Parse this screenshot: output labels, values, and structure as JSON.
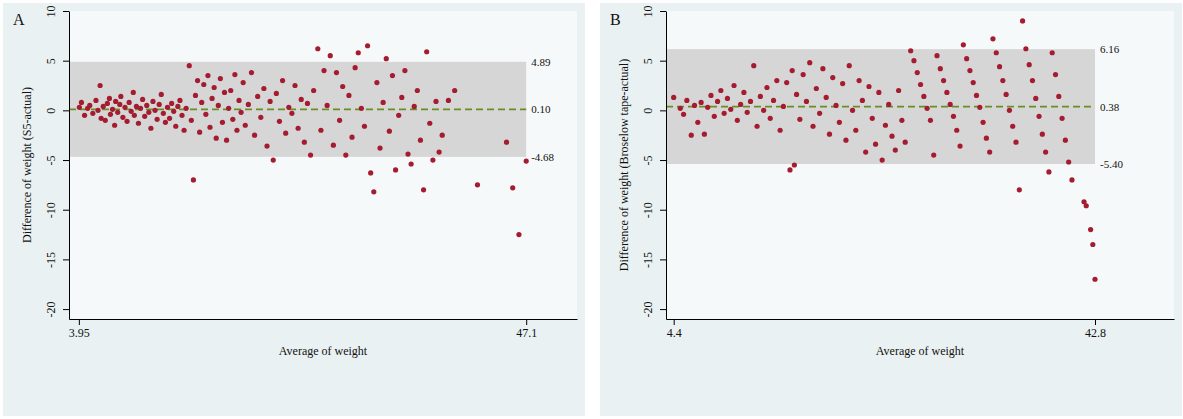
{
  "chart_data": [
    {
      "type": "scatter",
      "title": "A",
      "x_label": "Average of weight",
      "y_label": "Difference of weight (S5-actual)",
      "color": "#a51c30",
      "marker": "circle",
      "xlim": [
        3.0,
        52.0
      ],
      "ylim": [
        -21,
        10
      ],
      "xticks": [
        3.95,
        47.1
      ],
      "yticks": [
        -20,
        -15,
        -10,
        -5,
        0,
        5,
        10
      ],
      "mean_difference": {
        "value": 0.1,
        "label": "0.10"
      },
      "limits_of_agreement": [
        {
          "value": 4.89,
          "label": "4.89"
        },
        {
          "value": -4.68,
          "label": "-4.68"
        }
      ],
      "x": [
        4.0,
        4.2,
        4.5,
        4.8,
        5.0,
        5.3,
        5.6,
        5.8,
        6.0,
        6.1,
        6.3,
        6.5,
        6.7,
        6.9,
        7.0,
        7.2,
        7.4,
        7.5,
        7.7,
        7.9,
        8.0,
        8.2,
        8.4,
        8.6,
        8.8,
        9.0,
        9.2,
        9.3,
        9.5,
        9.7,
        9.9,
        10.1,
        10.3,
        10.5,
        10.7,
        10.9,
        11.1,
        11.3,
        11.5,
        11.7,
        11.9,
        12.1,
        12.3,
        12.5,
        12.7,
        12.9,
        13.1,
        13.3,
        13.5,
        13.7,
        13.9,
        14.1,
        14.3,
        14.6,
        14.8,
        15.0,
        15.2,
        15.4,
        15.6,
        15.8,
        16.0,
        16.2,
        16.4,
        16.6,
        16.8,
        17.0,
        17.2,
        17.4,
        17.6,
        17.8,
        18.0,
        18.2,
        18.4,
        18.6,
        18.8,
        19.0,
        19.2,
        19.4,
        19.6,
        19.8,
        20.0,
        20.3,
        20.6,
        20.9,
        21.2,
        21.5,
        21.8,
        22.1,
        22.4,
        22.7,
        23.0,
        23.3,
        23.6,
        23.9,
        24.2,
        24.5,
        24.8,
        25.1,
        25.4,
        25.7,
        26.0,
        26.3,
        26.6,
        27.0,
        27.3,
        27.6,
        27.9,
        28.2,
        28.5,
        28.8,
        29.1,
        29.4,
        29.7,
        30.0,
        30.3,
        30.6,
        30.9,
        31.2,
        31.5,
        31.8,
        32.1,
        32.4,
        32.7,
        33.0,
        33.3,
        33.6,
        33.9,
        34.2,
        34.5,
        34.8,
        35.1,
        35.4,
        35.7,
        36.0,
        36.3,
        36.6,
        36.9,
        37.2,
        37.5,
        37.8,
        38.1,
        38.4,
        38.7,
        39.0,
        39.6,
        40.2,
        42.4,
        45.2,
        45.8,
        46.4,
        47.1
      ],
      "y": [
        0.3,
        0.8,
        -0.5,
        0.2,
        0.5,
        -0.3,
        1.0,
        0.0,
        2.5,
        -0.8,
        0.4,
        -1.0,
        0.7,
        1.2,
        -0.4,
        0.1,
        -1.5,
        0.9,
        -0.2,
        0.6,
        1.4,
        -0.7,
        0.3,
        -1.1,
        0.8,
        -0.1,
        1.8,
        -0.5,
        0.4,
        -1.3,
        0.2,
        1.1,
        -0.6,
        0.5,
        -0.2,
        -1.8,
        0.9,
        0.0,
        -0.9,
        0.6,
        1.6,
        -0.3,
        -1.2,
        0.3,
        -0.8,
        0.7,
        -0.1,
        -1.6,
        0.4,
        1.0,
        -0.5,
        -2.0,
        0.2,
        4.5,
        -1.0,
        -7.0,
        1.5,
        3.0,
        -2.2,
        0.8,
        2.6,
        -0.4,
        3.5,
        -1.7,
        1.2,
        2.3,
        -2.8,
        0.5,
        3.2,
        -1.2,
        1.8,
        -3.0,
        0.2,
        2.0,
        -0.9,
        3.6,
        -2.0,
        1.0,
        -0.2,
        2.8,
        -1.5,
        0.6,
        3.8,
        -2.5,
        1.4,
        -0.7,
        2.2,
        -3.6,
        0.9,
        -5.0,
        1.7,
        -1.1,
        3.0,
        -2.3,
        0.3,
        -0.3,
        2.5,
        -1.8,
        1.1,
        -3.2,
        0.7,
        -4.5,
        2.0,
        6.2,
        -2.0,
        4.0,
        0.5,
        5.5,
        -3.5,
        3.8,
        -1.0,
        2.4,
        -4.5,
        1.5,
        -2.7,
        4.3,
        5.8,
        0.2,
        -1.6,
        6.5,
        -6.3,
        -8.2,
        2.8,
        -3.8,
        0.8,
        5.2,
        -2.1,
        3.5,
        -6.0,
        -0.5,
        1.3,
        4.0,
        -4.4,
        -5.4,
        0.4,
        2.0,
        -3.0,
        -8.0,
        5.9,
        -1.3,
        -5.0,
        0.9,
        -4.2,
        -2.5,
        1.0,
        2.0,
        -7.5,
        -3.2,
        -7.8,
        -12.5,
        -5.1
      ]
    },
    {
      "type": "scatter",
      "title": "B",
      "x_label": "Average of weight",
      "y_label": "Difference of weight (Broselow tape-actual)",
      "color": "#a51c30",
      "marker": "circle",
      "xlim": [
        3.7,
        50.0
      ],
      "ylim": [
        -21,
        10
      ],
      "xticks": [
        4.4,
        42.8
      ],
      "yticks": [
        -20,
        -15,
        -10,
        -5,
        0,
        5,
        10
      ],
      "mean_difference": {
        "value": 0.38,
        "label": "0.38"
      },
      "limits_of_agreement": [
        {
          "value": 6.16,
          "label": "6.16"
        },
        {
          "value": -5.4,
          "label": "-5.40"
        }
      ],
      "x": [
        4.4,
        5.0,
        5.3,
        5.6,
        6.0,
        6.3,
        6.6,
        6.9,
        7.2,
        7.5,
        7.8,
        8.1,
        8.4,
        8.7,
        9.0,
        9.3,
        9.6,
        9.9,
        10.2,
        10.5,
        10.8,
        11.1,
        11.4,
        11.7,
        12.0,
        12.3,
        12.6,
        12.9,
        13.2,
        13.5,
        13.8,
        14.1,
        14.4,
        14.7,
        15.0,
        15.2,
        15.4,
        15.6,
        15.9,
        16.2,
        16.5,
        16.8,
        17.1,
        17.4,
        17.7,
        18.0,
        18.3,
        18.6,
        18.9,
        19.2,
        19.5,
        19.8,
        20.1,
        20.4,
        20.7,
        21.0,
        21.3,
        21.6,
        21.9,
        22.2,
        22.5,
        22.8,
        23.1,
        23.4,
        23.7,
        24.0,
        24.3,
        24.6,
        24.9,
        25.2,
        25.5,
        26.0,
        26.3,
        26.6,
        26.9,
        27.2,
        27.5,
        27.8,
        28.1,
        28.4,
        28.7,
        29.0,
        29.3,
        29.6,
        29.9,
        30.2,
        30.5,
        30.8,
        31.1,
        31.4,
        31.7,
        32.0,
        32.3,
        32.6,
        32.9,
        33.2,
        33.5,
        33.8,
        34.1,
        34.4,
        34.7,
        35.0,
        35.3,
        35.6,
        35.9,
        36.2,
        36.5,
        36.8,
        37.1,
        37.4,
        37.7,
        38.0,
        38.3,
        38.6,
        38.9,
        39.2,
        39.5,
        39.8,
        40.1,
        40.4,
        40.7,
        41.8,
        42.0,
        42.4,
        42.6,
        42.8
      ],
      "y": [
        1.3,
        0.2,
        -0.4,
        1.0,
        -2.5,
        0.5,
        -1.2,
        0.8,
        -2.4,
        0.3,
        1.5,
        -0.6,
        0.9,
        2.0,
        -0.3,
        1.2,
        0.1,
        2.5,
        -1.0,
        0.6,
        1.8,
        -0.2,
        0.9,
        4.5,
        -1.6,
        1.4,
        0.0,
        2.3,
        -0.8,
        1.0,
        3.0,
        -2.0,
        0.4,
        2.8,
        -6.0,
        4.0,
        -5.5,
        1.6,
        -0.9,
        3.6,
        0.9,
        4.8,
        -1.6,
        2.2,
        -0.3,
        4.2,
        1.3,
        -2.4,
        3.3,
        0.5,
        -1.2,
        2.7,
        -3.0,
        4.5,
        0.0,
        -2.0,
        3.0,
        1.0,
        -4.2,
        2.4,
        -0.8,
        -3.4,
        1.8,
        -5.0,
        -1.5,
        0.6,
        -2.6,
        -4.0,
        2.0,
        -1.0,
        -3.2,
        6.0,
        5.0,
        3.8,
        2.6,
        1.4,
        0.2,
        -1.0,
        -4.5,
        5.5,
        4.2,
        3.0,
        1.8,
        0.6,
        -0.6,
        -2.0,
        -3.6,
        6.6,
        5.2,
        4.0,
        2.8,
        1.5,
        0.3,
        -1.2,
        -2.8,
        -4.2,
        7.2,
        5.8,
        4.4,
        3.0,
        1.6,
        0.0,
        -1.6,
        -3.2,
        -8.0,
        9.0,
        6.2,
        4.6,
        3.0,
        1.2,
        -0.6,
        -2.4,
        -4.2,
        -6.2,
        5.8,
        3.6,
        1.4,
        -0.8,
        -3.0,
        -5.2,
        -7.0,
        -9.2,
        -9.6,
        -12.0,
        -13.5,
        -17.0
      ]
    }
  ]
}
